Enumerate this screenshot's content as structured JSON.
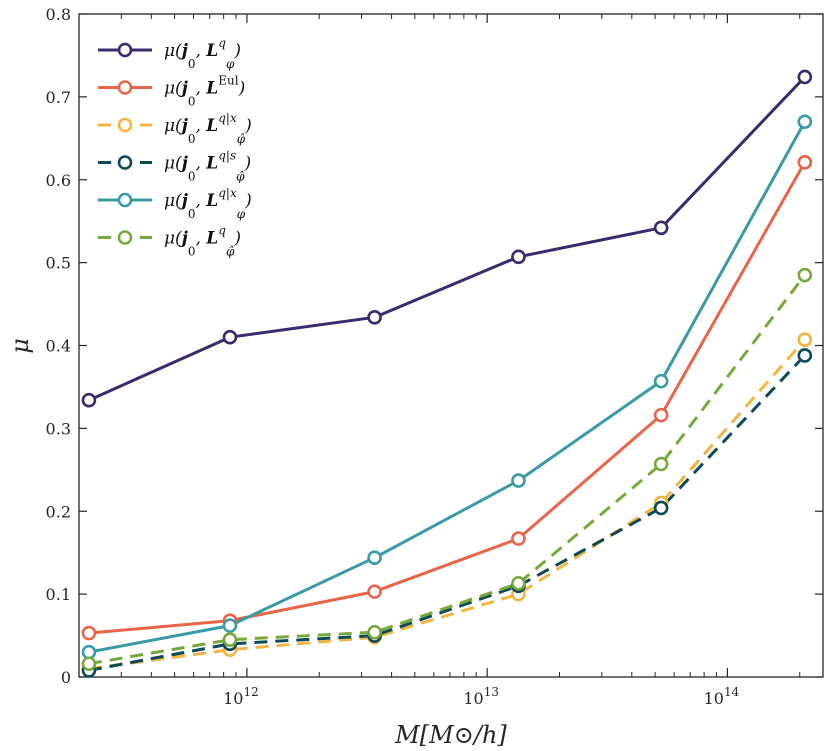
{
  "chart_data": {
    "type": "line",
    "xlabel": "M[M⊙/h]",
    "ylabel": "μ",
    "xscale": "log",
    "xlim": [
      200000000000.0,
      250000000000000.0
    ],
    "ylim": [
      0,
      0.8
    ],
    "grid": false,
    "legend_position": "top-left",
    "x": [
      220000000000.0,
      850000000000.0,
      3400000000000.0,
      13500000000000.0,
      53000000000000.0,
      210000000000000.0
    ],
    "y_ticks": [
      {
        "value": 0,
        "label": "0"
      },
      {
        "value": 0.1,
        "label": "0.1"
      },
      {
        "value": 0.2,
        "label": "0.2"
      },
      {
        "value": 0.3,
        "label": "0.3"
      },
      {
        "value": 0.4,
        "label": "0.4"
      },
      {
        "value": 0.5,
        "label": "0.5"
      },
      {
        "value": 0.6,
        "label": "0.6"
      },
      {
        "value": 0.7,
        "label": "0.7"
      },
      {
        "value": 0.8,
        "label": "0.8"
      }
    ],
    "x_ticks": [
      {
        "value": 1000000000000.0,
        "base": "10",
        "exp": "12"
      },
      {
        "value": 10000000000000.0,
        "base": "10",
        "exp": "13"
      },
      {
        "value": 100000000000000.0,
        "base": "10",
        "exp": "14"
      }
    ],
    "series": [
      {
        "name": "μ(j0, L^q_φ)",
        "color": "#3b2a6e",
        "dashed": false,
        "values": [
          0.334,
          0.41,
          0.434,
          0.507,
          0.542,
          0.724
        ]
      },
      {
        "name": "μ(j0, L^Eul)",
        "color": "#e8654a",
        "dashed": false,
        "values": [
          0.053,
          0.068,
          0.103,
          0.167,
          0.316,
          0.621
        ]
      },
      {
        "name": "μ(j0, L^{q|x}_φ̂)",
        "color": "#f5b441",
        "dashed": true,
        "values": [
          0.01,
          0.033,
          0.048,
          0.1,
          0.21,
          0.407
        ]
      },
      {
        "name": "μ(j0, L^{q|s}_φ̂)",
        "color": "#0d4a57",
        "dashed": true,
        "values": [
          0.008,
          0.04,
          0.05,
          0.11,
          0.204,
          0.388
        ]
      },
      {
        "name": "μ(j0, L^{q|x}_φ)",
        "color": "#3a9aa8",
        "dashed": false,
        "values": [
          0.03,
          0.062,
          0.144,
          0.237,
          0.357,
          0.67
        ]
      },
      {
        "name": "μ(j0, L^q_φ̂)",
        "color": "#77a83b",
        "dashed": true,
        "values": [
          0.016,
          0.045,
          0.054,
          0.113,
          0.257,
          0.485
        ]
      }
    ]
  }
}
